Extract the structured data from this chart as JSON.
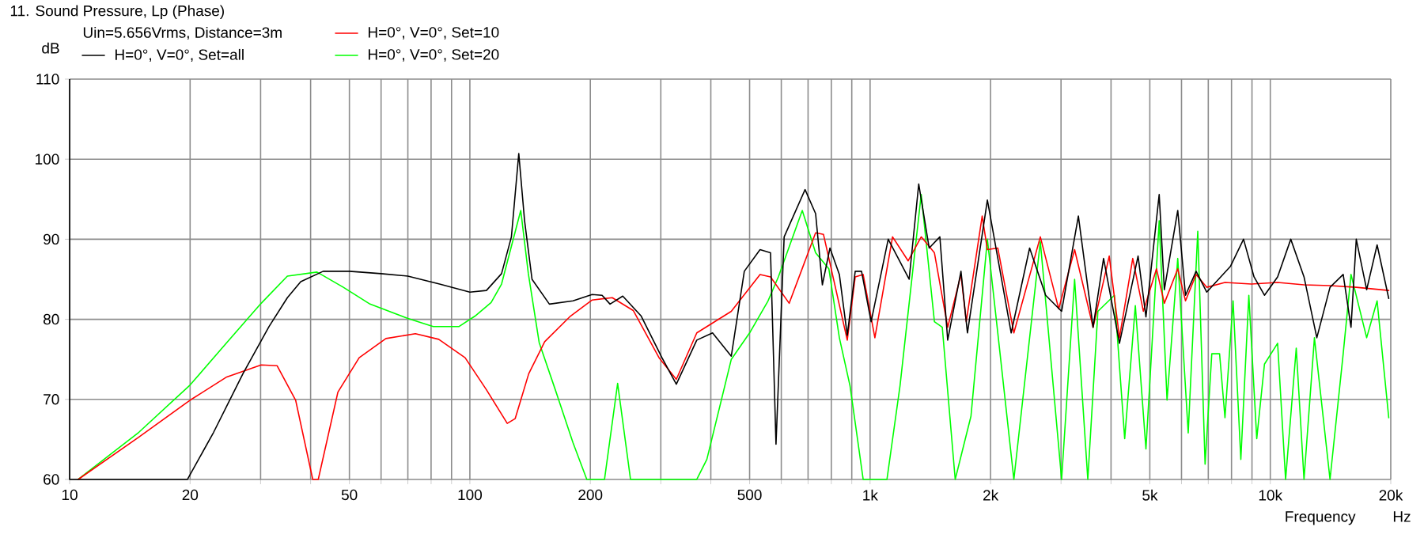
{
  "chart_data": {
    "type": "line",
    "title": "11. Sound Pressure, Lp (Phase)",
    "subtitle": "Uin=5.656Vrms, Distance=3m",
    "xlabel": "Frequency",
    "ylabel": "dB",
    "annotations": [
      "Hz"
    ],
    "log": "x",
    "grid": true,
    "legend": "top left",
    "marker": "none",
    "line_style": "solid",
    "xlim": [
      10,
      20000
    ],
    "ylim": [
      60,
      110
    ],
    "xticks": [
      10,
      20,
      {
        "value": 30,
        "label": null
      },
      {
        "value": 40,
        "label": null
      },
      50,
      {
        "value": 60,
        "label": null
      },
      {
        "value": 70,
        "label": null
      },
      {
        "value": 80,
        "label": null
      },
      {
        "value": 90,
        "label": null
      },
      100,
      200,
      {
        "value": 300,
        "label": null
      },
      {
        "value": 400,
        "label": null
      },
      500,
      {
        "value": 600,
        "label": null
      },
      {
        "value": 700,
        "label": null
      },
      {
        "value": 800,
        "label": null
      },
      {
        "value": 900,
        "label": null
      },
      {
        "value": 1000,
        "label": "1k"
      },
      {
        "value": 2000,
        "label": "2k"
      },
      {
        "value": 3000,
        "label": null
      },
      {
        "value": 4000,
        "label": null
      },
      {
        "value": 5000,
        "label": "5k"
      },
      {
        "value": 6000,
        "label": null
      },
      {
        "value": 7000,
        "label": null
      },
      {
        "value": 8000,
        "label": null
      },
      {
        "value": 9000,
        "label": null
      },
      {
        "value": 10000,
        "label": "10k"
      },
      {
        "value": 20000,
        "label": "20k"
      }
    ],
    "yticks": [
      60,
      70,
      80,
      90,
      100,
      110
    ],
    "series": [
      {
        "name": "H=0°, V=0°, Set=all",
        "color": "#000000",
        "x": [
          10,
          19.7,
          22.9,
          27.1,
          31.5,
          35,
          37.8,
          43,
          50,
          60,
          70,
          84,
          100,
          110,
          120,
          127,
          132.5,
          137,
          143,
          158,
          181,
          202,
          214,
          224,
          241,
          268,
          302,
          328,
          369,
          404,
          450,
          485,
          531,
          564,
          582,
          610,
          688,
          731,
          760,
          794,
          838,
          877,
          918,
          952,
          1006,
          1110,
          1252,
          1323,
          1405,
          1494,
          1563,
          1687,
          1751,
          1964,
          2252,
          2504,
          2746,
          3010,
          3315,
          3608,
          3832,
          4199,
          4673,
          4890,
          5277,
          5436,
          5872,
          6140,
          6526,
          6936,
          7948,
          8573,
          9106,
          9670,
          10430,
          11250,
          12140,
          13070,
          14100,
          15210,
          15910,
          16400,
          17410,
          18490,
          19770
        ],
        "values": [
          60,
          60,
          65.9,
          73.2,
          79.1,
          82.7,
          84.7,
          86,
          86,
          85.7,
          85.4,
          84.4,
          83.4,
          83.6,
          85.7,
          90.3,
          100.7,
          92.3,
          85,
          81.9,
          82.3,
          83.1,
          83,
          81.9,
          82.9,
          80.4,
          75.2,
          71.9,
          77.4,
          78.3,
          75.4,
          86,
          88.7,
          88.3,
          64.4,
          90.3,
          96.2,
          93.2,
          84.3,
          88.9,
          85.6,
          78,
          86,
          86,
          79.7,
          90,
          85,
          96.9,
          88.9,
          90.3,
          77.4,
          86,
          78.3,
          94.9,
          78.3,
          88.9,
          83,
          81,
          92.9,
          79,
          87.6,
          77,
          87.9,
          80.3,
          95.6,
          83.7,
          93.6,
          83,
          86,
          83.4,
          86.6,
          90,
          85.3,
          83,
          85.3,
          90,
          85.3,
          77.7,
          84,
          85.6,
          79,
          90,
          83.7,
          89.3,
          82.6
        ]
      },
      {
        "name": "H=0°, V=0°, Set=10",
        "color": "#ff0000",
        "x": [
          10.5,
          14.9,
          20,
          24.7,
          30.1,
          33,
          36.7,
          40.5,
          41.8,
          46.8,
          52.9,
          61.7,
          73.1,
          83.6,
          97.3,
          110,
          124,
          129.8,
          140.3,
          153.8,
          178.4,
          201.8,
          226.9,
          256,
          297,
          328,
          369,
          450,
          531,
          564,
          628,
          731,
          765,
          877,
          918,
          961,
          1028,
          1138,
          1245,
          1342,
          1448,
          1563,
          1687,
          1739,
          1906,
          1964,
          2085,
          2287,
          2663,
          2960,
          3244,
          3608,
          3959,
          4199,
          4532,
          4817,
          5196,
          5436,
          5872,
          6140,
          6526,
          6936,
          7706,
          8969,
          10430,
          12140,
          14100,
          16400,
          19770
        ],
        "values": [
          60,
          65.3,
          69.9,
          72.8,
          74.3,
          74.2,
          69.9,
          60,
          60,
          70.9,
          75.2,
          77.6,
          78.2,
          77.5,
          75.2,
          71.2,
          67,
          67.6,
          73.2,
          77.2,
          80.4,
          82.4,
          82.7,
          81.1,
          75.2,
          72.5,
          78.3,
          81,
          85.6,
          85.3,
          82,
          90.8,
          90.6,
          77.4,
          85.3,
          85.6,
          77.7,
          90.3,
          87.3,
          90.3,
          88.3,
          79,
          85.6,
          79.7,
          92.9,
          88.7,
          88.9,
          78.3,
          90.3,
          81.3,
          88.7,
          79,
          87.9,
          77.7,
          87.6,
          81,
          86.3,
          82,
          86.3,
          82.3,
          85.6,
          84,
          84.6,
          84.4,
          84.6,
          84.3,
          84.2,
          84,
          83.6
        ]
      },
      {
        "name": "H=0°, V=0°, Set=20",
        "color": "#00ff00",
        "x": [
          10.5,
          14.9,
          20,
          24.7,
          30.1,
          35,
          41.5,
          48.3,
          56.3,
          70,
          81,
          94,
          103,
          113,
          120,
          134,
          140,
          149,
          163.5,
          181,
          196,
          217,
          234,
          252,
          348,
          369,
          391,
          450,
          500,
          556,
          590,
          677,
          731,
          789,
          838,
          891,
          961,
          1102,
          1188,
          1342,
          1448,
          1515,
          1632,
          1787,
          1964,
          2085,
          2287,
          2663,
          3010,
          3244,
          3500,
          3709,
          4078,
          4327,
          4600,
          4890,
          5277,
          5521,
          5872,
          6236,
          6589,
          6872,
          7142,
          7470,
          7706,
          8073,
          8441,
          8838,
          9250,
          9670,
          10430,
          10920,
          11610,
          12140,
          12890,
          14100,
          15210,
          15910,
          17410,
          18490,
          19770
        ],
        "values": [
          60,
          65.9,
          71.8,
          77.1,
          82,
          85.4,
          85.9,
          84,
          81.9,
          80.1,
          79.1,
          79.1,
          80.4,
          82.1,
          84.4,
          93.6,
          85.7,
          77.1,
          71.2,
          64.6,
          60,
          60,
          72,
          60,
          60,
          60,
          62.5,
          75,
          78.3,
          82.3,
          85.3,
          93.6,
          88.3,
          86.3,
          77.7,
          71.7,
          60,
          60,
          71.7,
          95.6,
          79.7,
          79,
          60,
          67.9,
          90,
          78.3,
          60,
          89.7,
          60,
          85,
          60,
          81,
          83,
          65.1,
          81.7,
          63.8,
          92.3,
          69.9,
          87.6,
          65.8,
          91,
          61.9,
          75.7,
          75.7,
          67.7,
          82.3,
          62.5,
          83,
          65.1,
          74.4,
          77,
          60,
          76.4,
          60,
          77.7,
          60,
          75.7,
          85.6,
          77.7,
          82.3,
          67.7
        ]
      }
    ]
  }
}
